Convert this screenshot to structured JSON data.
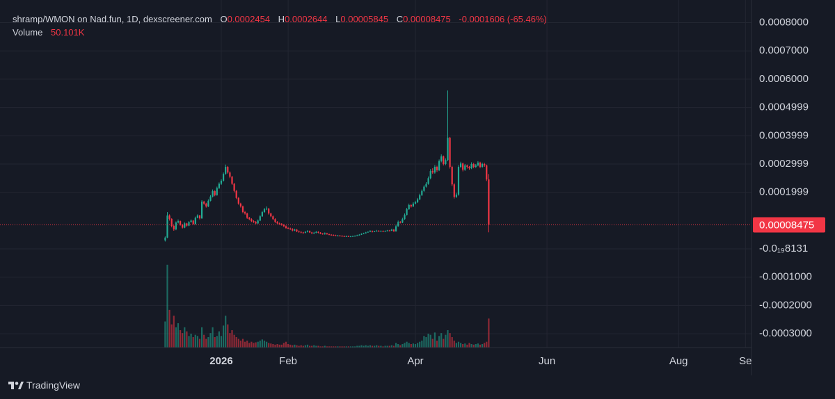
{
  "chart_data": {
    "type": "candlestick",
    "title": "shramp/WMON on Nad.fun, 1D, dexscreener.com",
    "ohlc_labels": [
      "O",
      "H",
      "L",
      "C"
    ],
    "change": "-0.0001606 (-65.46%)",
    "volume_title": "Volume",
    "volume_label": "50.101K",
    "brand": "TradingView",
    "up_color": "#22ab94",
    "down_color": "#f23645",
    "grid": true,
    "xlim": [
      -102.58,
      245.81
    ],
    "xticks": [
      {
        "value": 0,
        "label": "2026"
      },
      {
        "value": 31,
        "label": "Feb"
      },
      {
        "value": 90,
        "label": "Apr"
      },
      {
        "value": 151,
        "label": "Jun"
      },
      {
        "value": 212,
        "label": "Aug"
      },
      {
        "value": 243,
        "label": "Se"
      }
    ],
    "ylim": [
      -0.000349,
      0.00088
    ],
    "yticks": [
      {
        "value": 0.0008,
        "label": "0.0008000"
      },
      {
        "value": 0.0007,
        "label": "0.0007000"
      },
      {
        "value": 0.0006,
        "label": "0.0006000"
      },
      {
        "value": 0.0004999,
        "label": "0.0004999"
      },
      {
        "value": 0.0003999,
        "label": "0.0003999"
      },
      {
        "value": 0.0002999,
        "label": "0.0002999"
      },
      {
        "value": 0.0001999,
        "label": "0.0001999"
      },
      {
        "value": -8.131e-20,
        "label": "-0.0₁₉8131"
      },
      {
        "value": -0.0001,
        "label": "-0.0001000"
      },
      {
        "value": -0.0002,
        "label": "-0.0002000"
      },
      {
        "value": -0.0003,
        "label": "-0.0003000"
      }
    ],
    "x": [
      -26,
      -25,
      -24,
      -23,
      -22,
      -21,
      -20,
      -19,
      -18,
      -17,
      -16,
      -15,
      -14,
      -13,
      -12,
      -11,
      -10,
      -9,
      -8,
      -7,
      -6,
      -5,
      -4,
      -3,
      -2,
      -1,
      0,
      1,
      2,
      3,
      4,
      5,
      6,
      7,
      8,
      9,
      10,
      11,
      12,
      13,
      14,
      15,
      16,
      17,
      18,
      19,
      20,
      21,
      22,
      23,
      24,
      25,
      26,
      27,
      28,
      29,
      30,
      31,
      32,
      33,
      34,
      35,
      36,
      37,
      38,
      39,
      40,
      41,
      42,
      43,
      44,
      45,
      46,
      47,
      48,
      49,
      50,
      51,
      52,
      53,
      54,
      55,
      56,
      57,
      58,
      59,
      60,
      61,
      62,
      63,
      64,
      65,
      66,
      67,
      68,
      69,
      70,
      71,
      72,
      73,
      74,
      75,
      76,
      77,
      78,
      79,
      80,
      81,
      82,
      83,
      84,
      85,
      86,
      87,
      88,
      89,
      90,
      91,
      92,
      93,
      94,
      95,
      96,
      97,
      98,
      99,
      100,
      101,
      102,
      103,
      104,
      105,
      106,
      107,
      108,
      109,
      110,
      111,
      112,
      113,
      114,
      115,
      116,
      117,
      118,
      119,
      120,
      121,
      122,
      123,
      124
    ],
    "open": [
      3e-05,
      4e-05,
      0.000118,
      0.000106,
      8.1e-05,
      6.9e-05,
      9.3e-05,
      9.8e-05,
      8.5e-05,
      7.5e-05,
      9e-05,
      8.2e-05,
      9.5e-05,
      0.0001,
      8.8e-05,
      0.00011,
      0.000118,
      0.000108,
      0.000167,
      0.00016,
      0.00015,
      0.00017,
      0.000185,
      0.000204,
      0.00019,
      0.000215,
      0.00023,
      0.000241,
      0.000265,
      0.00029,
      0.00027,
      0.000255,
      0.00023,
      0.000205,
      0.00018,
      0.00016,
      0.00015,
      0.00013,
      0.000125,
      0.00011,
      0.000105,
      9.8e-05,
      9.5e-05,
      9e-05,
      0.0001,
      0.000115,
      0.00013,
      0.00014,
      0.000142,
      0.000125,
      0.000115,
      0.000105,
      9.5e-05,
      9e-05,
      8.8e-05,
      8.5e-05,
      8e-05,
      7.4e-05,
      7.2e-05,
      7e-05,
      6.5e-05,
      6.8e-05,
      6.2e-05,
      6e-05,
      5.8e-05,
      5.7e-05,
      6e-05,
      6.3e-05,
      5.8e-05,
      5.5e-05,
      5.7e-05,
      6e-05,
      5.7e-05,
      5.4e-05,
      5.2e-05,
      5.5e-05,
      5.2e-05,
      5e-05,
      4.9e-05,
      4.8e-05,
      4.7e-05,
      4.7e-05,
      4.6e-05,
      4.5e-05,
      4.4e-05,
      4.5e-05,
      4.4e-05,
      4.4e-05,
      4.5e-05,
      4.6e-05,
      4.8e-05,
      5e-05,
      5.3e-05,
      5.5e-05,
      5.8e-05,
      6e-05,
      6.3e-05,
      6e-05,
      6.2e-05,
      6.4e-05,
      6.2e-05,
      6.3e-05,
      6.1e-05,
      6.3e-05,
      6.5e-05,
      6.4e-05,
      6.8e-05,
      6.2e-05,
      8e-05,
      9.5e-05,
      9.3e-05,
      0.000105,
      0.00012,
      0.00014,
      0.000155,
      0.00015,
      0.00016,
      0.000165,
      0.000175,
      0.00019,
      0.000205,
      0.00022,
      0.00023,
      0.00025,
      0.000275,
      0.00027,
      0.00029,
      0.000278,
      0.00031,
      0.000327,
      0.0003,
      0.000314,
      0.000393,
      0.00029,
      0.000228,
      0.000184,
      0.000192,
      0.00029,
      0.000302,
      0.00028,
      0.000295,
      0.00029,
      0.000285,
      0.0003,
      0.00029,
      0.000295,
      0.000305,
      0.00029,
      0.0003,
      0.000295,
      0.0002454
    ],
    "high": [
      4.4e-05,
      0.00013,
      0.000122,
      0.000108,
      8.4e-05,
      9.7e-05,
      0.000104,
      0.0001,
      8.8e-05,
      9.4e-05,
      9.2e-05,
      9.8e-05,
      0.000104,
      0.000102,
      0.000114,
      0.000122,
      0.00012,
      0.000172,
      0.00017,
      0.000163,
      0.000175,
      0.00019,
      0.00021,
      0.000207,
      0.00022,
      0.000235,
      0.000246,
      0.00027,
      0.000298,
      0.000293,
      0.000274,
      0.000258,
      0.000233,
      0.000208,
      0.000183,
      0.000163,
      0.000153,
      0.000134,
      0.000128,
      0.000113,
      0.000108,
      0.000101,
      9.8e-05,
      0.000104,
      0.000119,
      0.000134,
      0.000145,
      0.00015,
      0.000145,
      0.000128,
      0.000118,
      0.000108,
      9.8e-05,
      9.3e-05,
      9.1e-05,
      8.8e-05,
      8.3e-05,
      7.7e-05,
      7.5e-05,
      7.3e-05,
      7.1e-05,
      7e-05,
      6.5e-05,
      6.2e-05,
      6e-05,
      6.3e-05,
      6.6e-05,
      6.5e-05,
      6e-05,
      6e-05,
      6.3e-05,
      6.2e-05,
      5.9e-05,
      5.6e-05,
      5.8e-05,
      5.7e-05,
      5.4e-05,
      5.2e-05,
      5.1e-05,
      5e-05,
      4.9e-05,
      4.9e-05,
      4.8e-05,
      4.7e-05,
      4.7e-05,
      4.7e-05,
      4.6e-05,
      4.7e-05,
      4.8e-05,
      5e-05,
      5.2e-05,
      5.5e-05,
      5.7e-05,
      6e-05,
      6.2e-05,
      6.6e-05,
      6.5e-05,
      6.4e-05,
      6.7e-05,
      6.6e-05,
      6.5e-05,
      6.5e-05,
      6.5e-05,
      6.7e-05,
      6.7e-05,
      7.1e-05,
      7e-05,
      8.5e-05,
      0.0001,
      9.8e-05,
      0.00011,
      0.000125,
      0.000145,
      0.00016,
      0.000158,
      0.000165,
      0.00017,
      0.00018,
      0.000195,
      0.00021,
      0.000225,
      0.000236,
      0.000256,
      0.000282,
      0.000285,
      0.000296,
      0.000294,
      0.000316,
      0.000334,
      0.00033,
      0.00032,
      0.00056,
      0.000396,
      0.000294,
      0.000232,
      0.000198,
      0.000296,
      0.000308,
      0.000305,
      0.0003,
      0.000298,
      0.000293,
      0.000306,
      0.000304,
      0.0003,
      0.00031,
      0.000308,
      0.000305,
      0.000304,
      0.000298,
      0.0002644
    ],
    "low": [
      2.6e-05,
      3.8e-05,
      0.0001,
      7.6e-05,
      6.4e-05,
      6.6e-05,
      9e-05,
      8.2e-05,
      7.2e-05,
      7.3e-05,
      7.9e-05,
      8e-05,
      9.3e-05,
      8.5e-05,
      8.6e-05,
      0.000108,
      0.000104,
      0.000106,
      0.000156,
      0.000146,
      0.000148,
      0.000168,
      0.000182,
      0.000186,
      0.000188,
      0.000212,
      0.000226,
      0.000238,
      0.000262,
      0.000266,
      0.00025,
      0.000226,
      0.0002,
      0.000176,
      0.000156,
      0.000146,
      0.000126,
      0.000121,
      0.000106,
      0.000102,
      9.5e-05,
      9.2e-05,
      8.7e-05,
      8.8e-05,
      9.8e-05,
      0.000113,
      0.000128,
      0.000137,
      0.000121,
      0.000112,
      0.000102,
      9.2e-05,
      8.7e-05,
      8.5e-05,
      8.2e-05,
      7.7e-05,
      7.1e-05,
      7e-05,
      6.7e-05,
      6.2e-05,
      6.3e-05,
      5.9e-05,
      5.7e-05,
      5.5e-05,
      5.4e-05,
      5.5e-05,
      5.8e-05,
      5.6e-05,
      5.2e-05,
      5.3e-05,
      5.5e-05,
      5.5e-05,
      5.2e-05,
      5e-05,
      5e-05,
      5e-05,
      4.8e-05,
      4.7e-05,
      4.6e-05,
      4.5e-05,
      4.5e-05,
      4.4e-05,
      4.3e-05,
      4.2e-05,
      4.2e-05,
      4.2e-05,
      4.2e-05,
      4.3e-05,
      4.4e-05,
      4.5e-05,
      4.7e-05,
      4.9e-05,
      5.2e-05,
      5.4e-05,
      5.7e-05,
      5.9e-05,
      5.8e-05,
      5.9e-05,
      6.1e-05,
      6e-05,
      6.1e-05,
      5.9e-05,
      6e-05,
      6.2e-05,
      6.2e-05,
      6.3e-05,
      6e-05,
      6.1e-05,
      7.8e-05,
      9e-05,
      9.1e-05,
      0.000103,
      0.000118,
      0.000138,
      0.000146,
      0.000148,
      0.000157,
      0.000162,
      0.000172,
      0.000187,
      0.000202,
      0.000217,
      0.000227,
      0.000246,
      0.000265,
      0.000266,
      0.000272,
      0.000275,
      0.000306,
      0.000295,
      0.000296,
      0.00031,
      0.000284,
      0.000222,
      0.000178,
      0.00018,
      0.000188,
      0.000286,
      0.000274,
      0.000276,
      0.000284,
      0.00028,
      0.000282,
      0.000285,
      0.000286,
      0.000292,
      0.000285,
      0.000287,
      0.00029,
      0.00024,
      5.845e-05
    ],
    "close": [
      4e-05,
      0.000118,
      0.000106,
      8.1e-05,
      6.9e-05,
      9.3e-05,
      9.8e-05,
      8.5e-05,
      7.5e-05,
      9e-05,
      8.2e-05,
      9.5e-05,
      0.0001,
      8.8e-05,
      0.00011,
      0.000118,
      0.000108,
      0.000167,
      0.00016,
      0.00015,
      0.00017,
      0.000185,
      0.000204,
      0.00019,
      0.000215,
      0.00023,
      0.000241,
      0.000265,
      0.00029,
      0.00027,
      0.000255,
      0.00023,
      0.000205,
      0.00018,
      0.00016,
      0.00015,
      0.00013,
      0.000125,
      0.00011,
      0.000105,
      9.8e-05,
      9.5e-05,
      9e-05,
      0.0001,
      0.000115,
      0.00013,
      0.00014,
      0.000142,
      0.000125,
      0.000115,
      0.000105,
      9.5e-05,
      9e-05,
      8.8e-05,
      8.5e-05,
      8e-05,
      7.4e-05,
      7.2e-05,
      7e-05,
      6.5e-05,
      6.8e-05,
      6.2e-05,
      6e-05,
      5.8e-05,
      5.7e-05,
      6e-05,
      6.3e-05,
      5.8e-05,
      5.5e-05,
      5.7e-05,
      6e-05,
      5.7e-05,
      5.4e-05,
      5.2e-05,
      5.5e-05,
      5.2e-05,
      5e-05,
      4.9e-05,
      4.8e-05,
      4.7e-05,
      4.7e-05,
      4.6e-05,
      4.5e-05,
      4.4e-05,
      4.5e-05,
      4.4e-05,
      4.4e-05,
      4.5e-05,
      4.6e-05,
      4.8e-05,
      5e-05,
      5.3e-05,
      5.5e-05,
      5.8e-05,
      6e-05,
      6.3e-05,
      6e-05,
      6.2e-05,
      6.4e-05,
      6.2e-05,
      6.3e-05,
      6.1e-05,
      6.3e-05,
      6.5e-05,
      6.4e-05,
      6.8e-05,
      6.2e-05,
      8e-05,
      9.5e-05,
      9.3e-05,
      0.000105,
      0.00012,
      0.00014,
      0.000155,
      0.00015,
      0.00016,
      0.000165,
      0.000175,
      0.00019,
      0.000205,
      0.00022,
      0.00023,
      0.00025,
      0.000275,
      0.00027,
      0.00029,
      0.000278,
      0.00031,
      0.000327,
      0.0003,
      0.000314,
      0.000393,
      0.00029,
      0.000228,
      0.000184,
      0.000192,
      0.00029,
      0.000302,
      0.00028,
      0.000295,
      0.00029,
      0.000285,
      0.0003,
      0.00029,
      0.000295,
      0.000305,
      0.00029,
      0.0003,
      0.000295,
      0.0002454,
      8.475e-05
    ],
    "volume": [
      45000,
      143000,
      65000,
      40000,
      55000,
      35000,
      42000,
      30000,
      25000,
      35000,
      28000,
      20000,
      24000,
      18000,
      22000,
      20000,
      15000,
      35000,
      22000,
      15000,
      18000,
      25000,
      35000,
      18000,
      20000,
      28000,
      20000,
      38000,
      55000,
      40000,
      25000,
      30000,
      22000,
      18000,
      15000,
      12000,
      15000,
      10000,
      12000,
      8000,
      10000,
      8000,
      9000,
      10000,
      12000,
      14000,
      12000,
      10000,
      8000,
      7000,
      6000,
      5000,
      6000,
      5000,
      5000,
      8000,
      10000,
      6000,
      5000,
      4000,
      5000,
      4000,
      3000,
      4000,
      3000,
      4000,
      5000,
      3000,
      3000,
      4000,
      3000,
      3000,
      2000,
      2000,
      3000,
      2000,
      2000,
      2000,
      2000,
      2000,
      2000,
      2000,
      2000,
      2000,
      2000,
      2000,
      2000,
      2000,
      2000,
      3000,
      3000,
      4000,
      3000,
      4000,
      3000,
      4000,
      3000,
      3000,
      4000,
      3000,
      3000,
      2000,
      3000,
      3000,
      3000,
      4000,
      3000,
      8000,
      6000,
      4000,
      6000,
      8000,
      10000,
      8000,
      6000,
      7000,
      6000,
      8000,
      10000,
      12000,
      20000,
      18000,
      24000,
      22000,
      15000,
      26000,
      12000,
      20000,
      25000,
      15000,
      22000,
      30000,
      25000,
      18000,
      12000,
      8000,
      10000,
      8000,
      6000,
      7000,
      5000,
      8000,
      6000,
      5000,
      6000,
      7000,
      5000,
      6000,
      8000,
      10000,
      50101
    ]
  }
}
